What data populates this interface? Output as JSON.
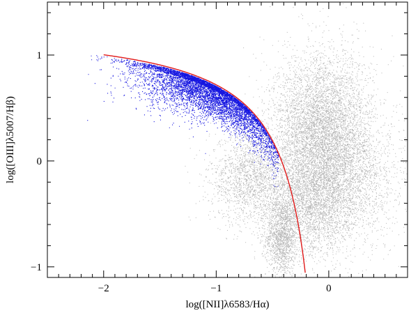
{
  "chart_data": {
    "type": "scatter",
    "title": "",
    "xlabel": "log([NII]λ6583/Hα)",
    "ylabel": "log([OIII]λ5007/Hβ)",
    "xlim": [
      -2.5,
      0.7
    ],
    "ylim": [
      -1.1,
      1.5
    ],
    "xticks": [
      -2,
      -1,
      0
    ],
    "yticks": [
      -1,
      0,
      1
    ],
    "xtick_labels": [
      "−2",
      "−1",
      "0"
    ],
    "ytick_labels": [
      "−1",
      "0",
      "1"
    ],
    "grid": false,
    "legend": "none",
    "series": [
      {
        "kind": "scatter-cloud",
        "color": "#9a9a9a",
        "components": [
          {
            "center_x": -0.42,
            "center_y": -0.72,
            "spread_x": 0.07,
            "spread_y": 0.18,
            "count": 1400
          },
          {
            "center_x": -0.7,
            "center_y": -0.15,
            "spread_x": 0.18,
            "spread_y": 0.22,
            "count": 1800
          },
          {
            "center_x": -0.05,
            "center_y": 0.25,
            "spread_x": 0.22,
            "spread_y": 0.38,
            "count": 6500
          },
          {
            "center_x": -0.15,
            "center_y": -0.4,
            "spread_x": 0.2,
            "spread_y": 0.25,
            "count": 2600
          },
          {
            "center_x": 0.25,
            "center_y": -0.2,
            "spread_x": 0.25,
            "spread_y": 0.3,
            "count": 1200
          }
        ]
      },
      {
        "kind": "scatter-band",
        "color": "#1515e0",
        "band_x_range": [
          -2.3,
          -0.45
        ],
        "band_y_offset_from_line": -0.08,
        "band_y_spread": 0.12,
        "count": 7000
      },
      {
        "kind": "curve",
        "color": "#e01818",
        "equation": "y = 0.61 / (x - 0.05) + 1.3",
        "x_range": [
          -2.0,
          -0.2
        ]
      }
    ]
  }
}
